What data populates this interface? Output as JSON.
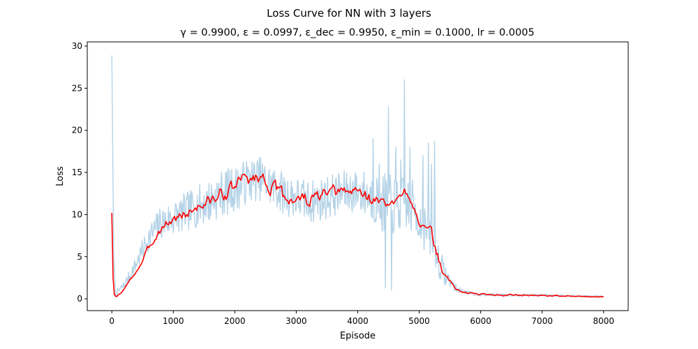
{
  "chart_data": {
    "type": "line",
    "suptitle": "Loss Curve for NN with 3 layers",
    "title": "γ = 0.9900, ε = 0.0997, ε_dec = 0.9950, ε_min = 0.1000, lr = 0.0005",
    "xlabel": "Episode",
    "ylabel": "Loss",
    "xlim": [
      -400,
      8400
    ],
    "ylim": [
      -1.4,
      30.5
    ],
    "xticks": [
      0,
      1000,
      2000,
      3000,
      4000,
      5000,
      6000,
      7000,
      8000
    ],
    "yticks": [
      0,
      5,
      10,
      15,
      20,
      25,
      30
    ],
    "grid": false,
    "colors": {
      "raw": "#b5d3e7",
      "smoothed": "#ff0000"
    },
    "series": [
      {
        "role": "raw",
        "noise_seed": 7,
        "anchors": [
          [
            0,
            29.0
          ],
          [
            30,
            5.0
          ],
          [
            60,
            0.4
          ],
          [
            100,
            0.9
          ],
          [
            200,
            1.6
          ],
          [
            300,
            2.8
          ],
          [
            400,
            4.2
          ],
          [
            500,
            5.8
          ],
          [
            600,
            7.2
          ],
          [
            700,
            8.2
          ],
          [
            800,
            9.0
          ],
          [
            1000,
            9.6
          ],
          [
            1200,
            10.3
          ],
          [
            1400,
            11.0
          ],
          [
            1600,
            11.6
          ],
          [
            1800,
            12.6
          ],
          [
            2000,
            13.0
          ],
          [
            2200,
            14.0
          ],
          [
            2400,
            14.3
          ],
          [
            2600,
            13.4
          ],
          [
            2800,
            12.5
          ],
          [
            3000,
            12.0
          ],
          [
            3200,
            11.5
          ],
          [
            3400,
            11.8
          ],
          [
            3600,
            12.3
          ],
          [
            3800,
            12.7
          ],
          [
            4000,
            12.8
          ],
          [
            4200,
            12.2
          ],
          [
            4400,
            11.5
          ],
          [
            4600,
            11.0
          ],
          [
            4800,
            11.3
          ],
          [
            4950,
            10.5
          ],
          [
            5050,
            8.5
          ],
          [
            5150,
            8.0
          ],
          [
            5300,
            5.0
          ],
          [
            5400,
            3.0
          ],
          [
            5500,
            2.2
          ],
          [
            5600,
            1.2
          ],
          [
            5800,
            0.7
          ],
          [
            6000,
            0.5
          ],
          [
            6500,
            0.45
          ],
          [
            7000,
            0.45
          ],
          [
            7500,
            0.35
          ],
          [
            8000,
            0.25
          ]
        ],
        "noise": [
          [
            0,
            0.2
          ],
          [
            300,
            0.8
          ],
          [
            800,
            2.0
          ],
          [
            1800,
            2.8
          ],
          [
            2400,
            2.6
          ],
          [
            4000,
            2.6
          ],
          [
            4500,
            3.6
          ],
          [
            5000,
            3.2
          ],
          [
            5300,
            2.2
          ],
          [
            5500,
            0.8
          ],
          [
            5700,
            0.25
          ],
          [
            6500,
            0.15
          ],
          [
            8000,
            0.1
          ]
        ],
        "spikes": [
          [
            4250,
            19.0
          ],
          [
            4350,
            16.0
          ],
          [
            4400,
            8.0
          ],
          [
            4450,
            1.3
          ],
          [
            4500,
            22.8
          ],
          [
            4550,
            1.0
          ],
          [
            4620,
            18.0
          ],
          [
            4700,
            16.5
          ],
          [
            4760,
            26.0
          ],
          [
            4850,
            18.0
          ],
          [
            5060,
            17.0
          ],
          [
            5150,
            18.5
          ],
          [
            5200,
            16.0
          ],
          [
            5250,
            18.7
          ],
          [
            5320,
            3.0
          ]
        ]
      },
      {
        "role": "smoothed",
        "noise_seed": 3,
        "anchors": [
          [
            0,
            10.2
          ],
          [
            15,
            3.0
          ],
          [
            40,
            0.5
          ],
          [
            70,
            0.2
          ],
          [
            150,
            0.7
          ],
          [
            250,
            1.7
          ],
          [
            400,
            3.3
          ],
          [
            500,
            4.5
          ],
          [
            600,
            6.0
          ],
          [
            700,
            7.3
          ],
          [
            800,
            8.4
          ],
          [
            900,
            9.0
          ],
          [
            1000,
            9.4
          ],
          [
            1200,
            10.1
          ],
          [
            1400,
            11.0
          ],
          [
            1600,
            11.6
          ],
          [
            1800,
            12.4
          ],
          [
            2000,
            13.2
          ],
          [
            2100,
            14.2
          ],
          [
            2200,
            14.1
          ],
          [
            2400,
            14.6
          ],
          [
            2600,
            13.4
          ],
          [
            2800,
            12.0
          ],
          [
            3000,
            11.9
          ],
          [
            3200,
            11.7
          ],
          [
            3400,
            12.2
          ],
          [
            3600,
            12.4
          ],
          [
            3800,
            12.6
          ],
          [
            4000,
            12.9
          ],
          [
            4200,
            12.0
          ],
          [
            4400,
            11.4
          ],
          [
            4600,
            11.0
          ],
          [
            4700,
            11.8
          ],
          [
            4760,
            13.7
          ],
          [
            4800,
            13.0
          ],
          [
            4900,
            11.5
          ],
          [
            5000,
            9.5
          ],
          [
            5100,
            8.0
          ],
          [
            5200,
            7.5
          ],
          [
            5300,
            5.0
          ],
          [
            5400,
            3.0
          ],
          [
            5500,
            2.0
          ],
          [
            5600,
            1.2
          ],
          [
            5700,
            0.8
          ],
          [
            5900,
            0.6
          ],
          [
            6200,
            0.5
          ],
          [
            6600,
            0.45
          ],
          [
            7000,
            0.4
          ],
          [
            7500,
            0.3
          ],
          [
            8000,
            0.22
          ]
        ],
        "noise": [
          [
            0,
            0.0
          ],
          [
            300,
            0.12
          ],
          [
            800,
            0.45
          ],
          [
            2000,
            0.7
          ],
          [
            4800,
            0.6
          ],
          [
            5300,
            0.5
          ],
          [
            5600,
            0.1
          ],
          [
            8000,
            0.03
          ]
        ]
      }
    ]
  }
}
